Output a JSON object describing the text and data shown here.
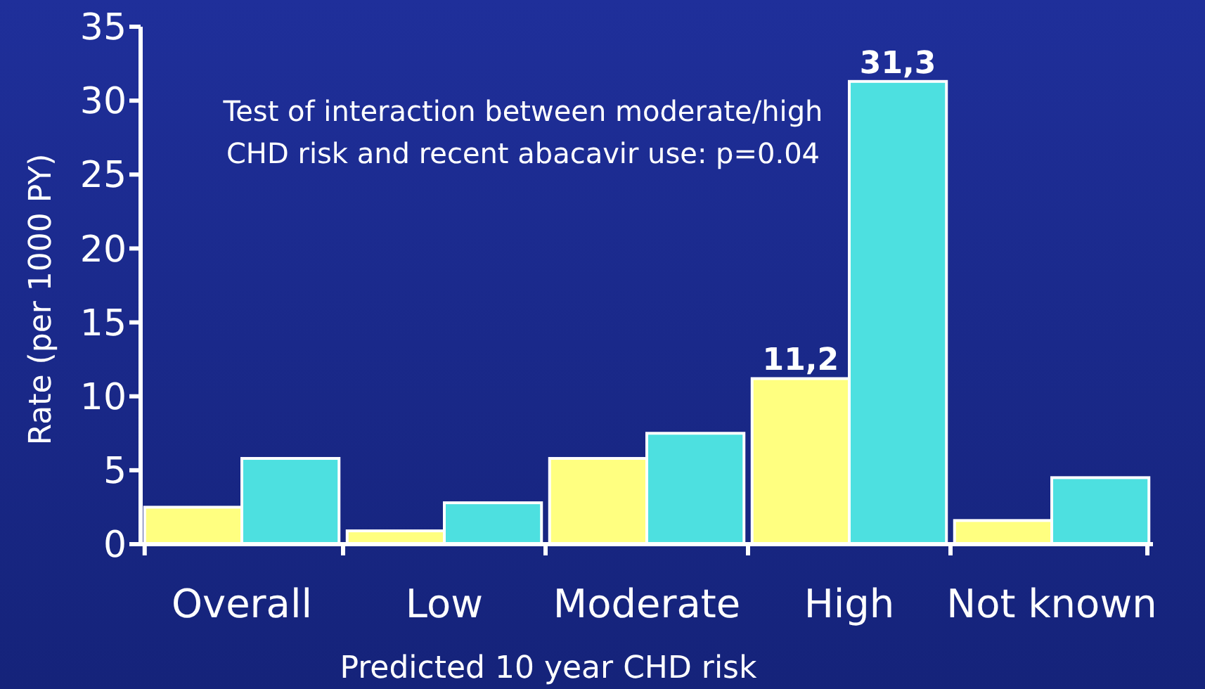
{
  "chart_data": {
    "type": "bar",
    "ylabel": "Rate (per 1000 PY)",
    "xlabel": "Predicted 10 year CHD risk",
    "categories": [
      "Overall",
      "Low",
      "Moderate",
      "High",
      "Not known"
    ],
    "series": [
      {
        "color": "#ffff80",
        "values": [
          2.5,
          0.9,
          5.8,
          11.2,
          1.6
        ],
        "value_labels": [
          null,
          null,
          null,
          "11,2",
          null
        ]
      },
      {
        "color": "#4de0e0",
        "values": [
          5.8,
          2.8,
          7.5,
          31.3,
          4.5
        ],
        "value_labels": [
          null,
          null,
          null,
          "31,3",
          null
        ]
      }
    ],
    "ylim": [
      0,
      35
    ],
    "yticks": [
      0,
      5,
      10,
      15,
      20,
      25,
      30,
      35
    ],
    "grid": false,
    "annotations": [
      "Test of interaction between moderate/high\nCHD risk and recent abacavir use: p=0.04"
    ]
  }
}
